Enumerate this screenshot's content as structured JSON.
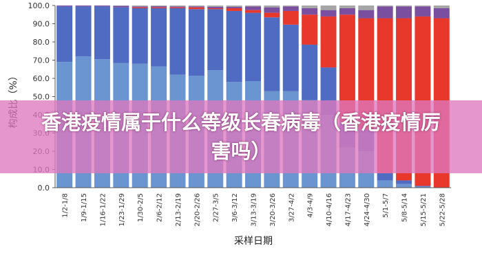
{
  "colors": {
    "c1": "#6a95d0",
    "c2": "#4f6cc2",
    "c3": "#e8382c",
    "c4": "#7b4fa0",
    "c5": "#a6a6a6"
  },
  "overlay": {
    "text": "香港疫情属于什么等级长春病毒（香港疫情厉害吗）"
  },
  "chart_data": {
    "type": "bar",
    "stacked": true,
    "xlabel": "采样日期",
    "ylabel": "构成比（%）",
    "ylim": [
      0,
      100
    ],
    "yticks": [
      "0.0",
      "10.0",
      "20.0",
      "30.0",
      "40.0",
      "50.0",
      "60.0",
      "70.0",
      "80.0",
      "90.0",
      "100.0"
    ],
    "categories": [
      "1/2-1/8",
      "1/9-1/15",
      "1/16-1/22",
      "1/23-1/29",
      "1/30-2/5",
      "2/6-2/12",
      "2/13-2/19",
      "2/20-2/26",
      "2/27-3/5",
      "3/6-3/12",
      "3/13-3/19",
      "3/20-3/26",
      "3/27-4/2",
      "4/3-4/9",
      "4/10-4/16",
      "4/17-4/23",
      "4/24-4/30",
      "5/1-5/7",
      "5/8-5/14",
      "5/15-5/21",
      "5/22-5/28"
    ],
    "series": [
      {
        "values": [
          69,
          72,
          70.5,
          68.5,
          68,
          66.5,
          62,
          61.5,
          64.5,
          58,
          58.5,
          53,
          53,
          48,
          40,
          22,
          20,
          4,
          2,
          0.5,
          0
        ]
      },
      {
        "values": [
          30.5,
          27.5,
          29,
          30.5,
          30.5,
          32,
          36.5,
          36.5,
          33.5,
          39,
          37.5,
          40.5,
          36.5,
          30.5,
          26,
          14,
          12,
          4,
          2,
          0.5,
          0
        ]
      },
      {
        "values": [
          0,
          0,
          0,
          0,
          0.5,
          0.5,
          0.5,
          1,
          0.5,
          1.5,
          1.5,
          2.5,
          7.5,
          16.5,
          28,
          59,
          61,
          85,
          89,
          93,
          93
        ]
      },
      {
        "values": [
          0.5,
          0.5,
          0.5,
          0.8,
          0.5,
          0.6,
          0.5,
          0.5,
          0.8,
          0.8,
          2,
          3,
          2.5,
          3.5,
          3.5,
          3.5,
          4.5,
          6.5,
          6.5,
          5.5,
          5.5
        ]
      },
      {
        "values": [
          0,
          0,
          0,
          0.2,
          0.5,
          0.4,
          0.5,
          0.5,
          0.7,
          0.7,
          0.5,
          1,
          0.5,
          1.5,
          2.5,
          1.5,
          2.5,
          0.5,
          0.5,
          0.5,
          1.5
        ]
      }
    ]
  }
}
